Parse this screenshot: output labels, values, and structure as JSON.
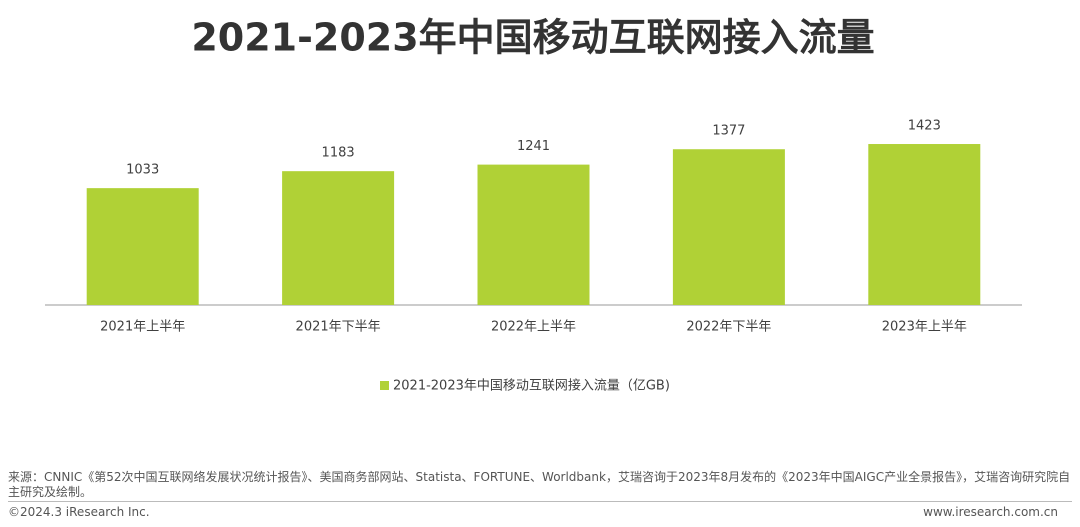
{
  "chart_data": {
    "type": "bar",
    "title": "2021-2023年中国移动互联网接入流量",
    "categories": [
      "2021年上半年",
      "2021年下半年",
      "2022年上半年",
      "2022年下半年",
      "2023年上半年"
    ],
    "series": [
      {
        "name": "2021-2023年中国移动互联网接入流量（亿GB)",
        "color": "#b0d136",
        "values": [
          1033,
          1183,
          1241,
          1377,
          1423
        ]
      }
    ],
    "ylim": [
      0,
      1600
    ]
  },
  "footer": {
    "source": "来源：CNNIC《第52次中国互联网络发展状况统计报告》、美国商务部网站、Statista、FORTUNE、Worldbank，艾瑞咨询于2023年8月发布的《2023年中国AIGC产业全景报告》，艾瑞咨询研究院自主研究及绘制。",
    "copyright": "©2024.3 iResearch Inc.",
    "website": "www.iresearch.com.cn"
  }
}
